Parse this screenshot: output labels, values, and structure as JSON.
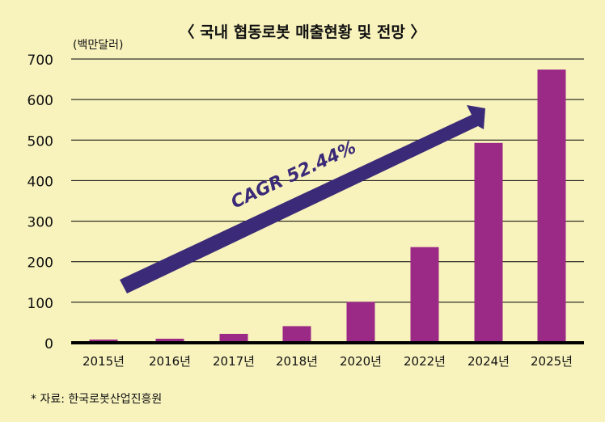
{
  "chart_data": {
    "type": "bar",
    "title": "〈 국내 협동로봇 매출현황 및 전망 〉",
    "ylabel": "(백만달러)",
    "xlabel": "",
    "ylim": [
      0,
      700
    ],
    "yticks": [
      0,
      100,
      200,
      300,
      400,
      500,
      600,
      700
    ],
    "grid": true,
    "categories": [
      "2015년",
      "2016년",
      "2017년",
      "2018년",
      "2020년",
      "2022년",
      "2024년",
      "2025년"
    ],
    "values": [
      8,
      10,
      22,
      41,
      101,
      236,
      493,
      674
    ],
    "annotation": "CAGR 52.44%",
    "source": "* 자료:  한국로봇산업진흥원"
  },
  "colors": {
    "bar": "#9b2a86",
    "arrow": "#3b2a78",
    "background": "#f8f3bd"
  }
}
